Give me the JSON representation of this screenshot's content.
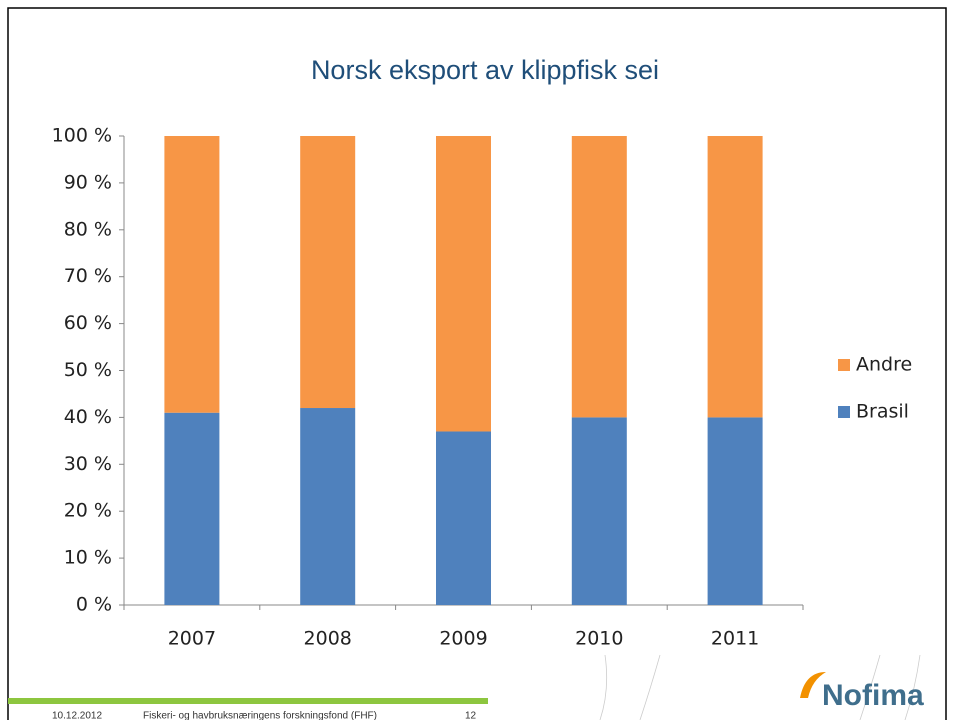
{
  "chart_data": {
    "type": "stacked_bar",
    "title": "Norsk eksport av klippfisk sei",
    "categories": [
      "2007",
      "2008",
      "2009",
      "2010",
      "2011"
    ],
    "series": [
      {
        "name": "Brasil",
        "color": "#4f81bd",
        "values": [
          41,
          42,
          37,
          40,
          40
        ]
      },
      {
        "name": "Andre",
        "color": "#f79646",
        "values": [
          59,
          58,
          63,
          60,
          60
        ]
      }
    ],
    "ylim": [
      0,
      100
    ],
    "yticks": [
      {
        "value": 0,
        "label": "0 %"
      },
      {
        "value": 10,
        "label": "10 %"
      },
      {
        "value": 20,
        "label": "20 %"
      },
      {
        "value": 30,
        "label": "30 %"
      },
      {
        "value": 40,
        "label": "40 %"
      },
      {
        "value": 50,
        "label": "50 %"
      },
      {
        "value": 60,
        "label": "60 %"
      },
      {
        "value": 70,
        "label": "70 %"
      },
      {
        "value": 80,
        "label": "80 %"
      },
      {
        "value": 90,
        "label": "90 %"
      },
      {
        "value": 100,
        "label": "100 %"
      }
    ],
    "legend": "right"
  },
  "footer": {
    "date": "10.12.2012",
    "text": "Fiskeri- og havbruksnæringens forskningsfond (FHF)",
    "page": "12",
    "logo": "Nofima"
  }
}
